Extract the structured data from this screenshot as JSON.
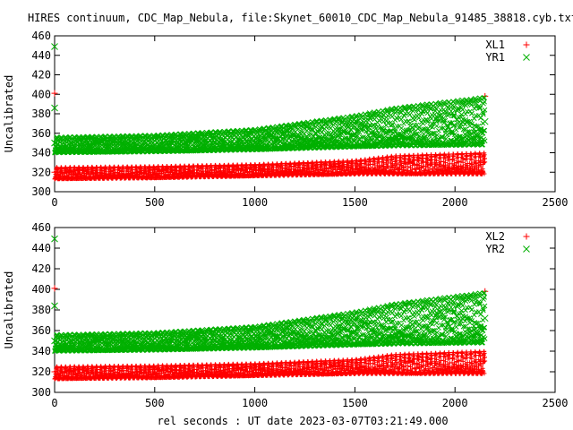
{
  "title": "HIRES continuum, CDC_Map_Nebula, file:Skynet_60010_CDC_Map_Nebula_91485_38818.cyb.txt",
  "xlabel": "rel seconds : UT date 2023-03-07T03:21:49.000",
  "colors": {
    "red": "#ff0000",
    "green": "#00b000"
  },
  "chart_data": [
    {
      "type": "scatter",
      "ylabel": "Uncalibrated",
      "xlim": [
        0,
        2500
      ],
      "ylim": [
        300,
        460
      ],
      "xticks": [
        0,
        500,
        1000,
        1500,
        2000,
        2500
      ],
      "yticks": [
        300,
        320,
        340,
        360,
        380,
        400,
        420,
        440,
        460
      ],
      "legend_position": "top-right",
      "series": [
        {
          "name": "XL1",
          "marker": "plus",
          "color": "#ff0000",
          "x": [
            0,
            0,
            2150
          ],
          "y": [
            320,
            401,
            398
          ],
          "envelope": {
            "x": [
              0,
              500,
              1000,
              1500,
              1700,
              2150
            ],
            "low": [
              313,
              314,
              316,
              318,
              318,
              318
            ],
            "high": [
              325,
              326,
              328,
              332,
              337,
              340
            ]
          }
        },
        {
          "name": "YR1",
          "marker": "cross",
          "color": "#00b000",
          "x": [
            0,
            0,
            0,
            2150
          ],
          "y": [
            449,
            386,
            350,
            372
          ],
          "envelope": {
            "x": [
              0,
              500,
              1000,
              1500,
              1700,
              2150
            ],
            "low": [
              340,
              341,
              343,
              346,
              347,
              348
            ],
            "high": [
              356,
              358,
              364,
              378,
              386,
              397
            ]
          }
        }
      ]
    },
    {
      "type": "scatter",
      "ylabel": "Uncalibrated",
      "xlim": [
        0,
        2500
      ],
      "ylim": [
        300,
        460
      ],
      "xticks": [
        0,
        500,
        1000,
        1500,
        2000,
        2500
      ],
      "yticks": [
        300,
        320,
        340,
        360,
        380,
        400,
        420,
        440,
        460
      ],
      "legend_position": "top-right",
      "series": [
        {
          "name": "XL2",
          "marker": "plus",
          "color": "#ff0000",
          "x": [
            0,
            0,
            2150
          ],
          "y": [
            320,
            401,
            398
          ],
          "envelope": {
            "x": [
              0,
              500,
              1000,
              1500,
              1700,
              2150
            ],
            "low": [
              313,
              314,
              316,
              318,
              318,
              318
            ],
            "high": [
              325,
              326,
              328,
              332,
              337,
              340
            ]
          }
        },
        {
          "name": "YR2",
          "marker": "cross",
          "color": "#00b000",
          "x": [
            0,
            0,
            0,
            2150
          ],
          "y": [
            449,
            384,
            350,
            372
          ],
          "envelope": {
            "x": [
              0,
              500,
              1000,
              1500,
              1700,
              2150
            ],
            "low": [
              340,
              341,
              343,
              346,
              347,
              348
            ],
            "high": [
              356,
              358,
              364,
              378,
              386,
              397
            ]
          }
        }
      ]
    }
  ]
}
